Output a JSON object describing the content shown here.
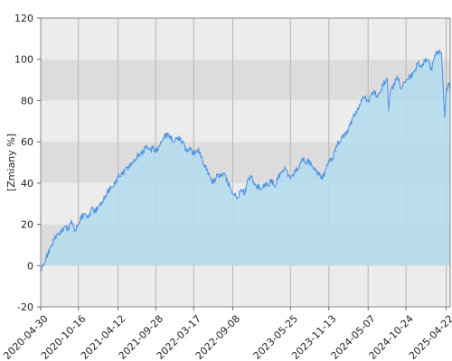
{
  "chart_data": {
    "type": "area",
    "title": "",
    "xlabel": "",
    "ylabel": "[Zmiany %]",
    "ylim": [
      -20,
      120
    ],
    "xlim": [
      "2020-04-30",
      "2025-05-10"
    ],
    "y_ticks": [
      -20,
      0,
      20,
      40,
      60,
      80,
      100,
      120
    ],
    "x_ticks": [
      "2020-04-30",
      "2020-10-16",
      "2021-04-12",
      "2021-09-28",
      "2022-03-17",
      "2022-09-08",
      "2023-05-25",
      "2023-11-13",
      "2024-05-07",
      "2024-10-24",
      "2025-04-22"
    ],
    "grid": true,
    "legend": "none",
    "colors": {
      "line": "#4a90e2",
      "fill": "#b3dcef",
      "band_light": "#ececec",
      "band_dark": "#dcdcdc",
      "gridline": "#b4b4b4"
    },
    "series": [
      {
        "x": [
          "2020-04-30",
          "2020-05-15",
          "2020-06-01",
          "2020-06-15",
          "2020-07-01",
          "2020-07-15",
          "2020-08-01",
          "2020-08-15",
          "2020-09-01",
          "2020-09-15",
          "2020-10-01",
          "2020-10-16",
          "2020-11-01",
          "2020-11-15",
          "2020-12-01",
          "2020-12-15",
          "2021-01-01",
          "2021-01-15",
          "2021-02-01",
          "2021-02-15",
          "2021-03-01",
          "2021-03-15",
          "2021-04-01",
          "2021-04-12",
          "2021-05-01",
          "2021-05-15",
          "2021-06-01",
          "2021-06-15",
          "2021-07-01",
          "2021-07-15",
          "2021-08-01",
          "2021-08-15",
          "2021-09-01",
          "2021-09-15",
          "2021-09-28",
          "2021-10-15",
          "2021-11-01",
          "2021-11-15",
          "2021-12-01",
          "2021-12-15",
          "2022-01-01",
          "2022-01-15",
          "2022-02-01",
          "2022-02-15",
          "2022-03-01",
          "2022-03-17",
          "2022-04-01",
          "2022-04-15",
          "2022-05-01",
          "2022-05-15",
          "2022-06-01",
          "2022-06-15",
          "2022-07-01",
          "2022-07-15",
          "2022-08-01",
          "2022-08-15",
          "2022-09-08",
          "2022-10-01",
          "2022-10-15",
          "2022-11-01",
          "2022-11-15",
          "2022-12-01",
          "2022-12-15",
          "2023-01-01",
          "2023-01-15",
          "2023-02-01",
          "2023-02-15",
          "2023-03-01",
          "2023-03-15",
          "2023-04-01",
          "2023-04-15",
          "2023-05-01",
          "2023-05-25",
          "2023-06-15",
          "2023-07-01",
          "2023-07-15",
          "2023-08-01",
          "2023-08-15",
          "2023-09-01",
          "2023-09-15",
          "2023-10-01",
          "2023-10-15",
          "2023-11-01",
          "2023-11-13",
          "2023-12-01",
          "2023-12-15",
          "2024-01-01",
          "2024-01-15",
          "2024-02-01",
          "2024-02-15",
          "2024-03-01",
          "2024-03-15",
          "2024-04-01",
          "2024-04-15",
          "2024-05-07",
          "2024-06-01",
          "2024-06-15",
          "2024-07-01",
          "2024-07-15",
          "2024-08-01",
          "2024-08-07",
          "2024-08-15",
          "2024-09-01",
          "2024-09-15",
          "2024-10-01",
          "2024-10-24",
          "2024-11-15",
          "2024-12-01",
          "2024-12-15",
          "2025-01-01",
          "2025-01-15",
          "2025-02-01",
          "2025-02-15",
          "2025-03-01",
          "2025-03-15",
          "2025-04-01",
          "2025-04-08",
          "2025-04-15",
          "2025-04-22",
          "2025-05-01",
          "2025-05-10"
        ],
        "y": [
          -2,
          1,
          6,
          9,
          13,
          15,
          16,
          19,
          18,
          22,
          17,
          20,
          24,
          25,
          23,
          28,
          26,
          29,
          31,
          34,
          37,
          38,
          40,
          43,
          44,
          47,
          48,
          50,
          52,
          54,
          55,
          58,
          56,
          57,
          55,
          58,
          62,
          64,
          63,
          60,
          62,
          61,
          59,
          55,
          57,
          54,
          56,
          55,
          49,
          47,
          42,
          40,
          44,
          43,
          45,
          41,
          35,
          33,
          37,
          35,
          42,
          43,
          39,
          38,
          37,
          40,
          39,
          42,
          38,
          43,
          45,
          47,
          42,
          46,
          47,
          52,
          50,
          51,
          48,
          46,
          44,
          42,
          47,
          51,
          52,
          58,
          60,
          63,
          64,
          68,
          72,
          74,
          78,
          82,
          80,
          85,
          82,
          84,
          88,
          90,
          75,
          85,
          88,
          92,
          86,
          90,
          92,
          94,
          98,
          96,
          99,
          100,
          95,
          102,
          104,
          103,
          88,
          72,
          84,
          88,
          87
        ]
      }
    ]
  }
}
